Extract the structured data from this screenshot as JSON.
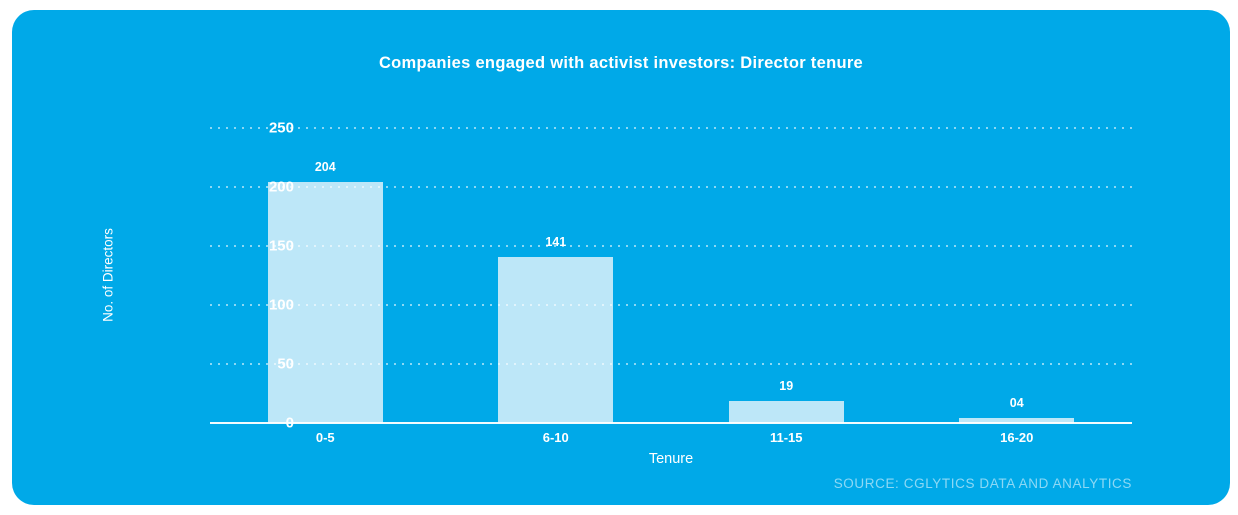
{
  "chart_data": {
    "type": "bar",
    "title": "Companies engaged with activist investors: Director tenure",
    "categories": [
      "0-5",
      "6-10",
      "11-15",
      "16-20"
    ],
    "values": [
      204,
      141,
      19,
      4
    ],
    "value_labels": [
      "204",
      "141",
      "19",
      "04"
    ],
    "xlabel": "Tenure",
    "ylabel": "No. of Directors",
    "ylim": [
      0,
      250
    ],
    "yticks": [
      0,
      50,
      100,
      150,
      200,
      250
    ],
    "grid": "horizontal dotted lines at each y tick, no vertical gridlines",
    "legend": "none",
    "source": "SOURCE: CGLYTICS DATA AND ANALYTICS",
    "colors": {
      "card_background": "#00A9E8",
      "bar_fill": "#BDE7F8",
      "title_text": "#FFFFFF",
      "axis_text": "#FFFFFF",
      "gridline": "rgba(255,255,255,0.55)",
      "axis_line": "#FFFFFF",
      "source_text": "rgba(255,255,255,0.55)",
      "page_background": "#FFFFFF"
    }
  }
}
